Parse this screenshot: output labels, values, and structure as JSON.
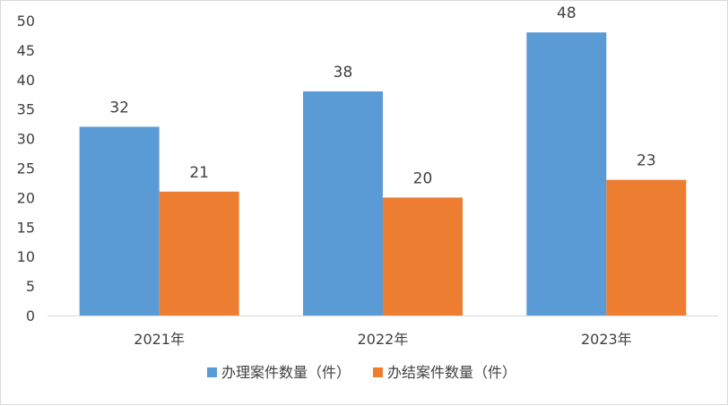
{
  "chart_data": {
    "type": "bar",
    "categories": [
      "2021年",
      "2022年",
      "2023年"
    ],
    "series": [
      {
        "name": "办理案件数量（件）",
        "values": [
          32,
          38,
          48
        ],
        "color": "#5b9bd5"
      },
      {
        "name": "办结案件数量（件）",
        "values": [
          21,
          20,
          23
        ],
        "color": "#ed7d31"
      }
    ],
    "ylim": [
      0,
      50
    ],
    "yticks": [
      0,
      5,
      10,
      15,
      20,
      25,
      30,
      35,
      40,
      45,
      50
    ],
    "grid": false,
    "legend": "bottom",
    "data_labels": true,
    "axis_color": "#d9d9d9",
    "text_color": "#404040"
  }
}
